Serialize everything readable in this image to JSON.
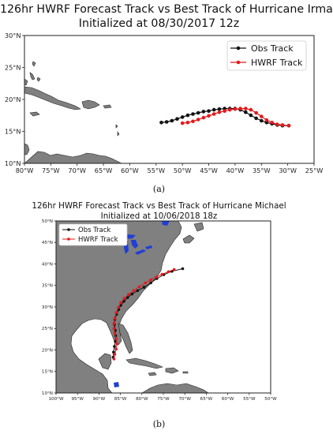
{
  "chart_data": [
    {
      "type": "line",
      "panel_label": "(a)",
      "title": "126hr HWRF Forecast Track vs Best Track of Hurricane Irma",
      "subtitle": "Initialized at 08/30/2017 12z",
      "xlim": [
        -80,
        -25
      ],
      "ylim": [
        10,
        31
      ],
      "xticks": [
        "80°W",
        "75°W",
        "70°W",
        "65°W",
        "60°W",
        "55°W",
        "50°W",
        "45°W",
        "40°W",
        "35°W",
        "30°W",
        "25°W"
      ],
      "yticks": [
        "10°N",
        "15°N",
        "20°N",
        "25°N",
        "30°N"
      ],
      "legend_position": "top-right",
      "series": [
        {
          "name": "Obs Track",
          "color": "#111111",
          "points": [
            [
              -54.0,
              16.7
            ],
            [
              -53.0,
              16.8
            ],
            [
              -52.0,
              17.0
            ],
            [
              -51.0,
              17.3
            ],
            [
              -50.0,
              17.6
            ],
            [
              -49.0,
              17.9
            ],
            [
              -48.0,
              18.1
            ],
            [
              -47.0,
              18.3
            ],
            [
              -46.0,
              18.5
            ],
            [
              -45.0,
              18.6
            ],
            [
              -44.0,
              18.8
            ],
            [
              -43.0,
              18.9
            ],
            [
              -42.0,
              19.0
            ],
            [
              -41.0,
              19.0
            ],
            [
              -40.0,
              19.0
            ],
            [
              -39.0,
              18.8
            ],
            [
              -38.0,
              18.4
            ],
            [
              -37.0,
              17.9
            ],
            [
              -36.0,
              17.4
            ],
            [
              -35.0,
              17.0
            ],
            [
              -34.0,
              16.7
            ],
            [
              -33.0,
              16.5
            ],
            [
              -32.0,
              16.3
            ],
            [
              -31.0,
              16.2
            ],
            [
              -29.8,
              16.2
            ]
          ]
        },
        {
          "name": "HWRF Track",
          "color": "#e41a1c",
          "points": [
            [
              -50.0,
              16.6
            ],
            [
              -49.0,
              16.7
            ],
            [
              -48.0,
              16.9
            ],
            [
              -47.0,
              17.2
            ],
            [
              -46.0,
              17.5
            ],
            [
              -45.0,
              17.8
            ],
            [
              -44.0,
              18.1
            ],
            [
              -43.0,
              18.4
            ],
            [
              -42.0,
              18.6
            ],
            [
              -41.0,
              18.8
            ],
            [
              -40.0,
              18.9
            ],
            [
              -39.0,
              19.0
            ],
            [
              -38.0,
              19.0
            ],
            [
              -37.0,
              18.8
            ],
            [
              -36.0,
              18.3
            ],
            [
              -35.0,
              17.7
            ],
            [
              -34.0,
              17.1
            ],
            [
              -33.0,
              16.7
            ],
            [
              -32.0,
              16.4
            ],
            [
              -31.0,
              16.3
            ],
            [
              -29.8,
              16.2
            ]
          ]
        }
      ]
    },
    {
      "type": "line",
      "panel_label": "(b)",
      "title": "126hr HWRF Forecast Track vs Best Track of Hurricane Michael",
      "subtitle": "Initialized at 10/06/2018 18z",
      "xlim": [
        -100,
        -50
      ],
      "ylim": [
        10,
        50
      ],
      "xticks": [
        "100°W",
        "95°W",
        "90°W",
        "85°W",
        "80°W",
        "75°W",
        "70°W",
        "65°W",
        "60°W",
        "55°W",
        "50°W"
      ],
      "yticks": [
        "10°N",
        "15°N",
        "20°N",
        "25°N",
        "30°N",
        "35°N",
        "40°N",
        "45°N",
        "50°N"
      ],
      "legend_position": "top-left",
      "series": [
        {
          "name": "Obs Track",
          "color": "#111111",
          "points": [
            [
              -86.7,
              18.3
            ],
            [
              -86.6,
              19.5
            ],
            [
              -86.4,
              20.8
            ],
            [
              -86.2,
              22.0
            ],
            [
              -86.1,
              23.3
            ],
            [
              -86.2,
              24.6
            ],
            [
              -86.4,
              25.9
            ],
            [
              -86.3,
              27.1
            ],
            [
              -85.9,
              28.3
            ],
            [
              -85.4,
              29.4
            ],
            [
              -84.9,
              30.4
            ],
            [
              -84.2,
              31.3
            ],
            [
              -83.3,
              32.2
            ],
            [
              -82.3,
              33.0
            ],
            [
              -81.0,
              33.8
            ],
            [
              -79.5,
              34.6
            ],
            [
              -77.9,
              35.6
            ],
            [
              -76.5,
              36.6
            ],
            [
              -74.9,
              37.5
            ],
            [
              -73.0,
              38.3
            ],
            [
              -70.5,
              38.9
            ]
          ]
        },
        {
          "name": "HWRF Track",
          "color": "#e41a1c",
          "points": [
            [
              -86.5,
              17.9
            ],
            [
              -86.3,
              19.0
            ],
            [
              -86.0,
              20.2
            ],
            [
              -85.8,
              21.4
            ],
            [
              -86.0,
              22.6
            ],
            [
              -86.3,
              23.8
            ],
            [
              -86.5,
              25.0
            ],
            [
              -86.5,
              26.2
            ],
            [
              -86.3,
              27.4
            ],
            [
              -86.0,
              28.7
            ],
            [
              -85.5,
              29.9
            ],
            [
              -84.9,
              31.0
            ],
            [
              -84.1,
              32.0
            ],
            [
              -83.1,
              32.9
            ],
            [
              -81.9,
              33.8
            ],
            [
              -80.6,
              34.7
            ],
            [
              -79.2,
              35.6
            ],
            [
              -77.9,
              36.3
            ],
            [
              -76.6,
              37.0
            ],
            [
              -75.3,
              37.6
            ],
            [
              -73.8,
              38.2
            ],
            [
              -72.5,
              38.7
            ]
          ]
        }
      ]
    }
  ]
}
